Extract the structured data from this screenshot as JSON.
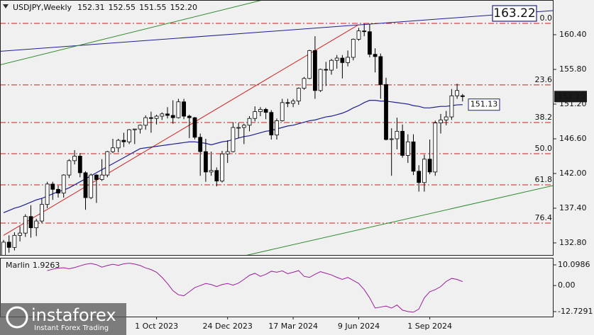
{
  "chart_data": {
    "type": "candlestick",
    "header": {
      "symbol": "USDJPY,Weekly",
      "ohlc_labels": [
        "152.31",
        "152.55",
        "151.55",
        "152.20"
      ]
    },
    "watermark": {
      "brand": "instaforex",
      "tagline": "Instant Forex Trading"
    },
    "categories": [
      null,
      null,
      null,
      null,
      null,
      null,
      null,
      null,
      null,
      null,
      null,
      null,
      null,
      null,
      null,
      null,
      null,
      null,
      null,
      null,
      null,
      null,
      null,
      null,
      null,
      null,
      null,
      null,
      "1 Oct 2023",
      null,
      null,
      null,
      null,
      null,
      null,
      null,
      null,
      null,
      null,
      null,
      null,
      "24 Dec 2023",
      null,
      null,
      null,
      null,
      null,
      null,
      null,
      null,
      null,
      null,
      null,
      "17 Mar 2024",
      null,
      null,
      null,
      null,
      null,
      null,
      null,
      null,
      null,
      null,
      null,
      "9 Jun 2024",
      null,
      null,
      null,
      null,
      null,
      null,
      null,
      null,
      null,
      null,
      null,
      null,
      "1 Sep 2024",
      null,
      null,
      null,
      null,
      null,
      null
    ],
    "ohlc": [
      [
        130.8,
        133.2,
        130.6,
        132.9
      ],
      [
        132.9,
        133.8,
        131.5,
        132.2
      ],
      [
        132.2,
        134.2,
        131.8,
        133.8
      ],
      [
        133.8,
        135.0,
        133.0,
        134.1
      ],
      [
        134.1,
        136.6,
        133.6,
        136.3
      ],
      [
        136.3,
        137.8,
        133.5,
        134.8
      ],
      [
        134.8,
        136.0,
        133.7,
        135.7
      ],
      [
        135.7,
        138.7,
        135.4,
        137.9
      ],
      [
        137.9,
        140.9,
        137.4,
        140.6
      ],
      [
        140.6,
        140.9,
        138.5,
        139.9
      ],
      [
        139.9,
        140.4,
        138.8,
        139.4
      ],
      [
        139.4,
        141.9,
        138.8,
        141.8
      ],
      [
        141.8,
        143.9,
        141.4,
        143.7
      ],
      [
        143.7,
        145.1,
        143.2,
        144.3
      ],
      [
        144.3,
        144.7,
        141.5,
        142.1
      ],
      [
        142.1,
        142.3,
        137.2,
        138.8
      ],
      [
        138.8,
        142.0,
        138.6,
        141.8
      ],
      [
        141.8,
        141.9,
        138.1,
        141.2
      ],
      [
        141.2,
        143.9,
        141.0,
        141.8
      ],
      [
        141.8,
        145.0,
        141.5,
        144.9
      ],
      [
        144.9,
        146.6,
        144.7,
        145.4
      ],
      [
        145.4,
        146.6,
        144.8,
        146.4
      ],
      [
        146.4,
        147.4,
        145.5,
        146.2
      ],
      [
        146.2,
        147.9,
        145.9,
        147.8
      ],
      [
        147.8,
        147.9,
        145.9,
        147.9
      ],
      [
        147.9,
        148.5,
        147.3,
        148.4
      ],
      [
        148.4,
        149.7,
        147.8,
        149.4
      ],
      [
        149.4,
        150.2,
        147.4,
        149.3
      ],
      [
        149.3,
        149.8,
        148.5,
        149.6
      ],
      [
        149.6,
        150.1,
        149.1,
        149.9
      ],
      [
        149.9,
        150.8,
        149.3,
        149.7
      ],
      [
        149.7,
        151.7,
        148.6,
        149.4
      ],
      [
        149.4,
        151.9,
        149.3,
        151.5
      ],
      [
        151.5,
        151.9,
        149.2,
        149.6
      ],
      [
        149.6,
        149.8,
        146.7,
        149.4
      ],
      [
        149.4,
        149.5,
        146.5,
        146.8
      ],
      [
        146.8,
        147.3,
        141.7,
        144.9
      ],
      [
        144.9,
        146.6,
        140.9,
        142.2
      ],
      [
        142.2,
        144.9,
        141.7,
        142.4
      ],
      [
        142.4,
        142.8,
        140.3,
        141.0
      ],
      [
        141.0,
        145.0,
        140.8,
        144.6
      ],
      [
        144.6,
        146.4,
        143.4,
        144.9
      ],
      [
        144.9,
        148.8,
        144.8,
        148.1
      ],
      [
        148.1,
        148.7,
        146.7,
        148.1
      ],
      [
        148.1,
        148.6,
        145.9,
        148.4
      ],
      [
        148.4,
        149.6,
        147.6,
        149.3
      ],
      [
        149.3,
        150.9,
        148.9,
        150.2
      ],
      [
        150.2,
        150.8,
        149.6,
        150.5
      ],
      [
        150.5,
        150.7,
        149.2,
        150.1
      ],
      [
        150.1,
        150.4,
        146.5,
        147.1
      ],
      [
        147.1,
        149.3,
        146.5,
        149.0
      ],
      [
        149.0,
        151.9,
        148.9,
        151.4
      ],
      [
        151.4,
        151.9,
        150.8,
        151.3
      ],
      [
        151.3,
        151.9,
        150.8,
        151.6
      ],
      [
        151.6,
        153.4,
        151.1,
        153.3
      ],
      [
        153.3,
        154.8,
        153.1,
        154.6
      ],
      [
        154.6,
        158.4,
        154.5,
        158.3
      ],
      [
        158.3,
        160.2,
        151.9,
        153.0
      ],
      [
        153.0,
        155.9,
        152.8,
        155.8
      ],
      [
        155.8,
        156.8,
        153.6,
        155.7
      ],
      [
        155.7,
        157.2,
        155.1,
        157.0
      ],
      [
        157.0,
        157.7,
        155.9,
        157.3
      ],
      [
        157.3,
        157.7,
        154.6,
        156.7
      ],
      [
        156.7,
        158.3,
        156.2,
        157.4
      ],
      [
        157.4,
        159.9,
        157.0,
        159.8
      ],
      [
        159.8,
        161.3,
        159.6,
        160.9
      ],
      [
        160.9,
        161.9,
        160.2,
        160.8
      ],
      [
        160.8,
        161.8,
        157.4,
        157.8
      ],
      [
        157.8,
        158.6,
        155.4,
        157.5
      ],
      [
        157.5,
        157.9,
        151.9,
        153.8
      ],
      [
        153.8,
        154.7,
        146.4,
        146.5
      ],
      [
        146.5,
        148.0,
        141.7,
        146.6
      ],
      [
        146.6,
        149.4,
        145.2,
        147.6
      ],
      [
        147.6,
        148.5,
        144.1,
        144.4
      ],
      [
        144.4,
        147.2,
        143.4,
        146.2
      ],
      [
        146.2,
        147.2,
        141.8,
        142.3
      ],
      [
        142.3,
        143.1,
        139.6,
        140.8
      ],
      [
        140.8,
        144.5,
        139.6,
        143.9
      ],
      [
        143.9,
        146.5,
        141.9,
        142.2
      ],
      [
        142.2,
        149.0,
        141.7,
        148.7
      ],
      [
        148.7,
        149.9,
        147.3,
        149.1
      ],
      [
        149.1,
        150.3,
        148.4,
        149.5
      ],
      [
        149.5,
        153.2,
        149.1,
        152.3
      ],
      [
        152.3,
        153.9,
        151.9,
        153.0
      ],
      [
        152.31,
        152.55,
        151.55,
        152.2
      ]
    ],
    "bull_color": "#ffffff",
    "bear_color": "#000000",
    "outline_color": "#000000",
    "ylim": [
      131.2,
      165.0
    ],
    "yticks": [
      {
        "value": 160.4,
        "label": "160.40"
      },
      {
        "value": 155.8,
        "label": "155.80"
      },
      {
        "value": 151.2,
        "label": "151.20"
      },
      {
        "value": 146.6,
        "label": "146.60"
      },
      {
        "value": 142.0,
        "label": "142.00"
      },
      {
        "value": 137.4,
        "label": "137.40"
      },
      {
        "value": 132.8,
        "label": "132.80"
      }
    ],
    "ma": {
      "color": "#1f1f8f",
      "values": [
        136.8,
        137.1,
        137.4,
        137.6,
        137.9,
        138.2,
        138.5,
        138.7,
        139.0,
        139.3,
        139.6,
        139.8,
        140.1,
        140.5,
        140.9,
        141.3,
        141.7,
        142.1,
        142.5,
        142.9,
        143.3,
        143.7,
        144.1,
        144.5,
        144.9,
        145.3,
        145.4,
        145.5,
        145.6,
        145.7,
        145.8,
        145.9,
        146.0,
        146.1,
        146.2,
        146.2,
        146.1,
        146.0,
        145.8,
        146.0,
        146.2,
        146.3,
        146.5,
        146.7,
        146.9,
        147.0,
        147.2,
        147.4,
        147.6,
        147.7,
        147.9,
        148.1,
        148.3,
        148.4,
        148.6,
        148.8,
        149.0,
        149.1,
        149.3,
        149.5,
        149.6,
        149.8,
        150.0,
        150.3,
        150.7,
        151.0,
        151.4,
        151.7,
        151.7,
        151.6,
        151.6,
        151.5,
        151.4,
        151.3,
        151.2,
        151.0,
        150.9,
        150.7,
        150.7,
        150.8,
        150.9,
        150.9,
        151.0,
        151.1,
        151.13
      ]
    },
    "lines": [
      {
        "color": "#1f1f8f",
        "from": [
          -0.65,
          158.2
        ],
        "to": [
          100.6,
          163.6
        ]
      },
      {
        "color": "#2e8b2e",
        "from": [
          -0.65,
          156.4
        ],
        "to": [
          47.4,
          165.0
        ]
      },
      {
        "color": "#2e8b2e",
        "from": [
          43.5,
          131.0
        ],
        "to": [
          100.6,
          140.4
        ]
      },
      {
        "color": "#d02020",
        "from": [
          0,
          133.8
        ],
        "to": [
          64.9,
          161.7
        ]
      }
    ],
    "fib": {
      "color": "#cc1f1f",
      "levels": [
        {
          "level": "0.0",
          "price": 161.9
        },
        {
          "level": "23.6",
          "price": 153.74
        },
        {
          "level": "38.2",
          "price": 148.76
        },
        {
          "level": "50.0",
          "price": 144.63
        },
        {
          "level": "61.8",
          "price": 140.5
        },
        {
          "level": "76.4",
          "price": 135.43
        }
      ]
    },
    "price_labels": [
      {
        "value": 163.22,
        "style": "large",
        "color": "#1f1f8f"
      },
      {
        "value": 152.2,
        "value_label": "152.20",
        "style": "axis",
        "color": "#1a1a1a"
      },
      {
        "value": 151.13,
        "style": "inline",
        "color": "#1f1f8f"
      }
    ],
    "oscillator": {
      "name": "Marlin",
      "color": "#9b1f9b",
      "values": [
        null,
        null,
        null,
        null,
        null,
        null,
        null,
        null,
        7.3,
        8,
        8.5,
        8.7,
        8.2,
        8.8,
        9.6,
        10.4,
        10.8,
        10.2,
        9,
        9.8,
        10.4,
        9.9,
        10.6,
        10.9,
        10.5,
        9.8,
        8.6,
        7.8,
        6.5,
        4,
        1,
        -2.5,
        -4.5,
        -5,
        -3,
        -1,
        0,
        1,
        0.5,
        -0.5,
        0.5,
        1,
        0.2,
        1.2,
        3,
        5,
        6,
        4.5,
        5.5,
        7,
        6.5,
        7.2,
        5.8,
        6.5,
        7.3,
        4.5,
        4,
        5.5,
        6.8,
        6,
        5.2,
        4,
        3,
        4,
        2.5,
        1,
        -2,
        -6,
        -11,
        -10.5,
        -10,
        -11,
        -9.5,
        -12,
        -12.7,
        -13,
        -11.5,
        -6,
        -3,
        -2,
        -0.5,
        2,
        3.5,
        3,
        1.9263
      ],
      "ylim": [
        -15.15,
        13.21
      ],
      "yticks": [
        10.0986,
        {
          "value": 0,
          "label": "0.00"
        },
        -12.7291
      ]
    }
  }
}
